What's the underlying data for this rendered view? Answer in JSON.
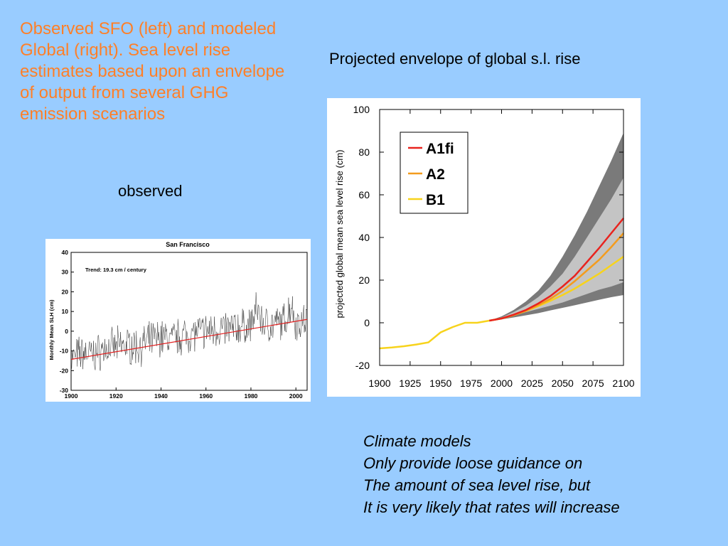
{
  "intro_text": "Observed SFO (left) and modeled Global (right). Sea level rise estimates based upon an envelope of output from several GHG emission scenarios",
  "observed_label": "observed",
  "projected_title": "Projected envelope of global s.l. rise",
  "notes": [
    "Climate models",
    "Only provide loose guidance on",
    "The amount of sea level rise, but",
    "It is very likely that rates will increase"
  ],
  "colors": {
    "background": "#99ccff",
    "intro_text": "#ff7f27",
    "A1fi": "#e8231e",
    "A2": "#f39c1e",
    "B1": "#f7d31c",
    "outer_envelope": "#7a7a7a",
    "inner_envelope": "#c4c4c4",
    "trend_line": "#e02020"
  },
  "chart_data": [
    {
      "type": "line",
      "title": "San  Francisco",
      "ylabel": "Monthly  Mean  SLH  (cm)",
      "xlabel": "",
      "annotation": "Trend:  19.3 cm / century",
      "xlim": [
        1900,
        2005
      ],
      "ylim": [
        -30,
        40
      ],
      "xticks": [
        1900,
        1920,
        1940,
        1960,
        1980,
        2000
      ],
      "yticks": [
        -30,
        -20,
        -10,
        0,
        10,
        20,
        30,
        40
      ],
      "grid": false,
      "series": [
        {
          "role": "monthly mean sea level",
          "x": [
            1900,
            1905,
            1910,
            1915,
            1920,
            1925,
            1930,
            1935,
            1940,
            1945,
            1950,
            1955,
            1960,
            1965,
            1970,
            1975,
            1980,
            1983,
            1985,
            1990,
            1995,
            1998,
            2000,
            2005
          ],
          "y": [
            -14,
            -11,
            -12,
            -9,
            -8,
            -7,
            -8,
            -5,
            -3,
            -4,
            -2,
            -1,
            0,
            1,
            1,
            2,
            3,
            12,
            4,
            3,
            5,
            14,
            4,
            6
          ]
        },
        {
          "role": "trend",
          "x": [
            1900,
            2005
          ],
          "y": [
            -14.3,
            6
          ]
        }
      ]
    },
    {
      "type": "area",
      "title": "",
      "xlabel": "",
      "ylabel": "projected global mean sea level rise (cm)",
      "xlim": [
        1900,
        2100
      ],
      "ylim": [
        -20,
        100
      ],
      "xticks": [
        1900,
        1925,
        1950,
        1975,
        2000,
        2025,
        2050,
        2075,
        2100
      ],
      "yticks": [
        -20,
        0,
        20,
        40,
        60,
        80,
        100
      ],
      "grid": false,
      "legend_position": "top-left",
      "historical": {
        "x": [
          1900,
          1910,
          1920,
          1930,
          1940,
          1950,
          1960,
          1970,
          1980,
          1990
        ],
        "y": [
          -12,
          -11.6,
          -11,
          -10.2,
          -9.2,
          -4.5,
          -2,
          0,
          0,
          1
        ]
      },
      "envelope_x": [
        1990,
        2000,
        2010,
        2020,
        2030,
        2040,
        2050,
        2060,
        2070,
        2080,
        2090,
        2100
      ],
      "outer_envelope": {
        "upper": [
          1,
          3,
          6,
          10,
          15,
          22,
          31,
          41,
          52,
          64,
          76,
          89
        ],
        "lower": [
          1,
          1.6,
          2.5,
          3.5,
          4.5,
          5.8,
          7,
          8.2,
          9.5,
          10.8,
          12,
          13
        ]
      },
      "inner_envelope": {
        "upper": [
          1,
          2.5,
          5,
          8,
          12,
          17,
          23,
          31,
          40,
          49,
          58,
          68
        ],
        "lower": [
          1,
          2,
          3.5,
          5,
          6.5,
          8,
          9.5,
          11.5,
          13.5,
          15.5,
          17,
          19
        ]
      },
      "series": [
        {
          "name": "A1fi",
          "x": [
            1990,
            2000,
            2010,
            2020,
            2030,
            2040,
            2050,
            2060,
            2070,
            2080,
            2090,
            2100
          ],
          "y": [
            1,
            2,
            3.8,
            6,
            9,
            12.5,
            17,
            22,
            28.5,
            35,
            42,
            49
          ]
        },
        {
          "name": "A2",
          "x": [
            1990,
            2000,
            2010,
            2020,
            2030,
            2040,
            2050,
            2060,
            2070,
            2080,
            2090,
            2100
          ],
          "y": [
            1,
            2,
            3.6,
            5.6,
            8.2,
            11.2,
            15,
            19.5,
            24.5,
            29.5,
            35.5,
            42
          ]
        },
        {
          "name": "B1",
          "x": [
            1990,
            2000,
            2010,
            2020,
            2030,
            2040,
            2050,
            2060,
            2070,
            2080,
            2090,
            2100
          ],
          "y": [
            1,
            2,
            3.6,
            5.5,
            7.8,
            10.3,
            13,
            16,
            19.5,
            23,
            27,
            31
          ]
        }
      ]
    }
  ]
}
